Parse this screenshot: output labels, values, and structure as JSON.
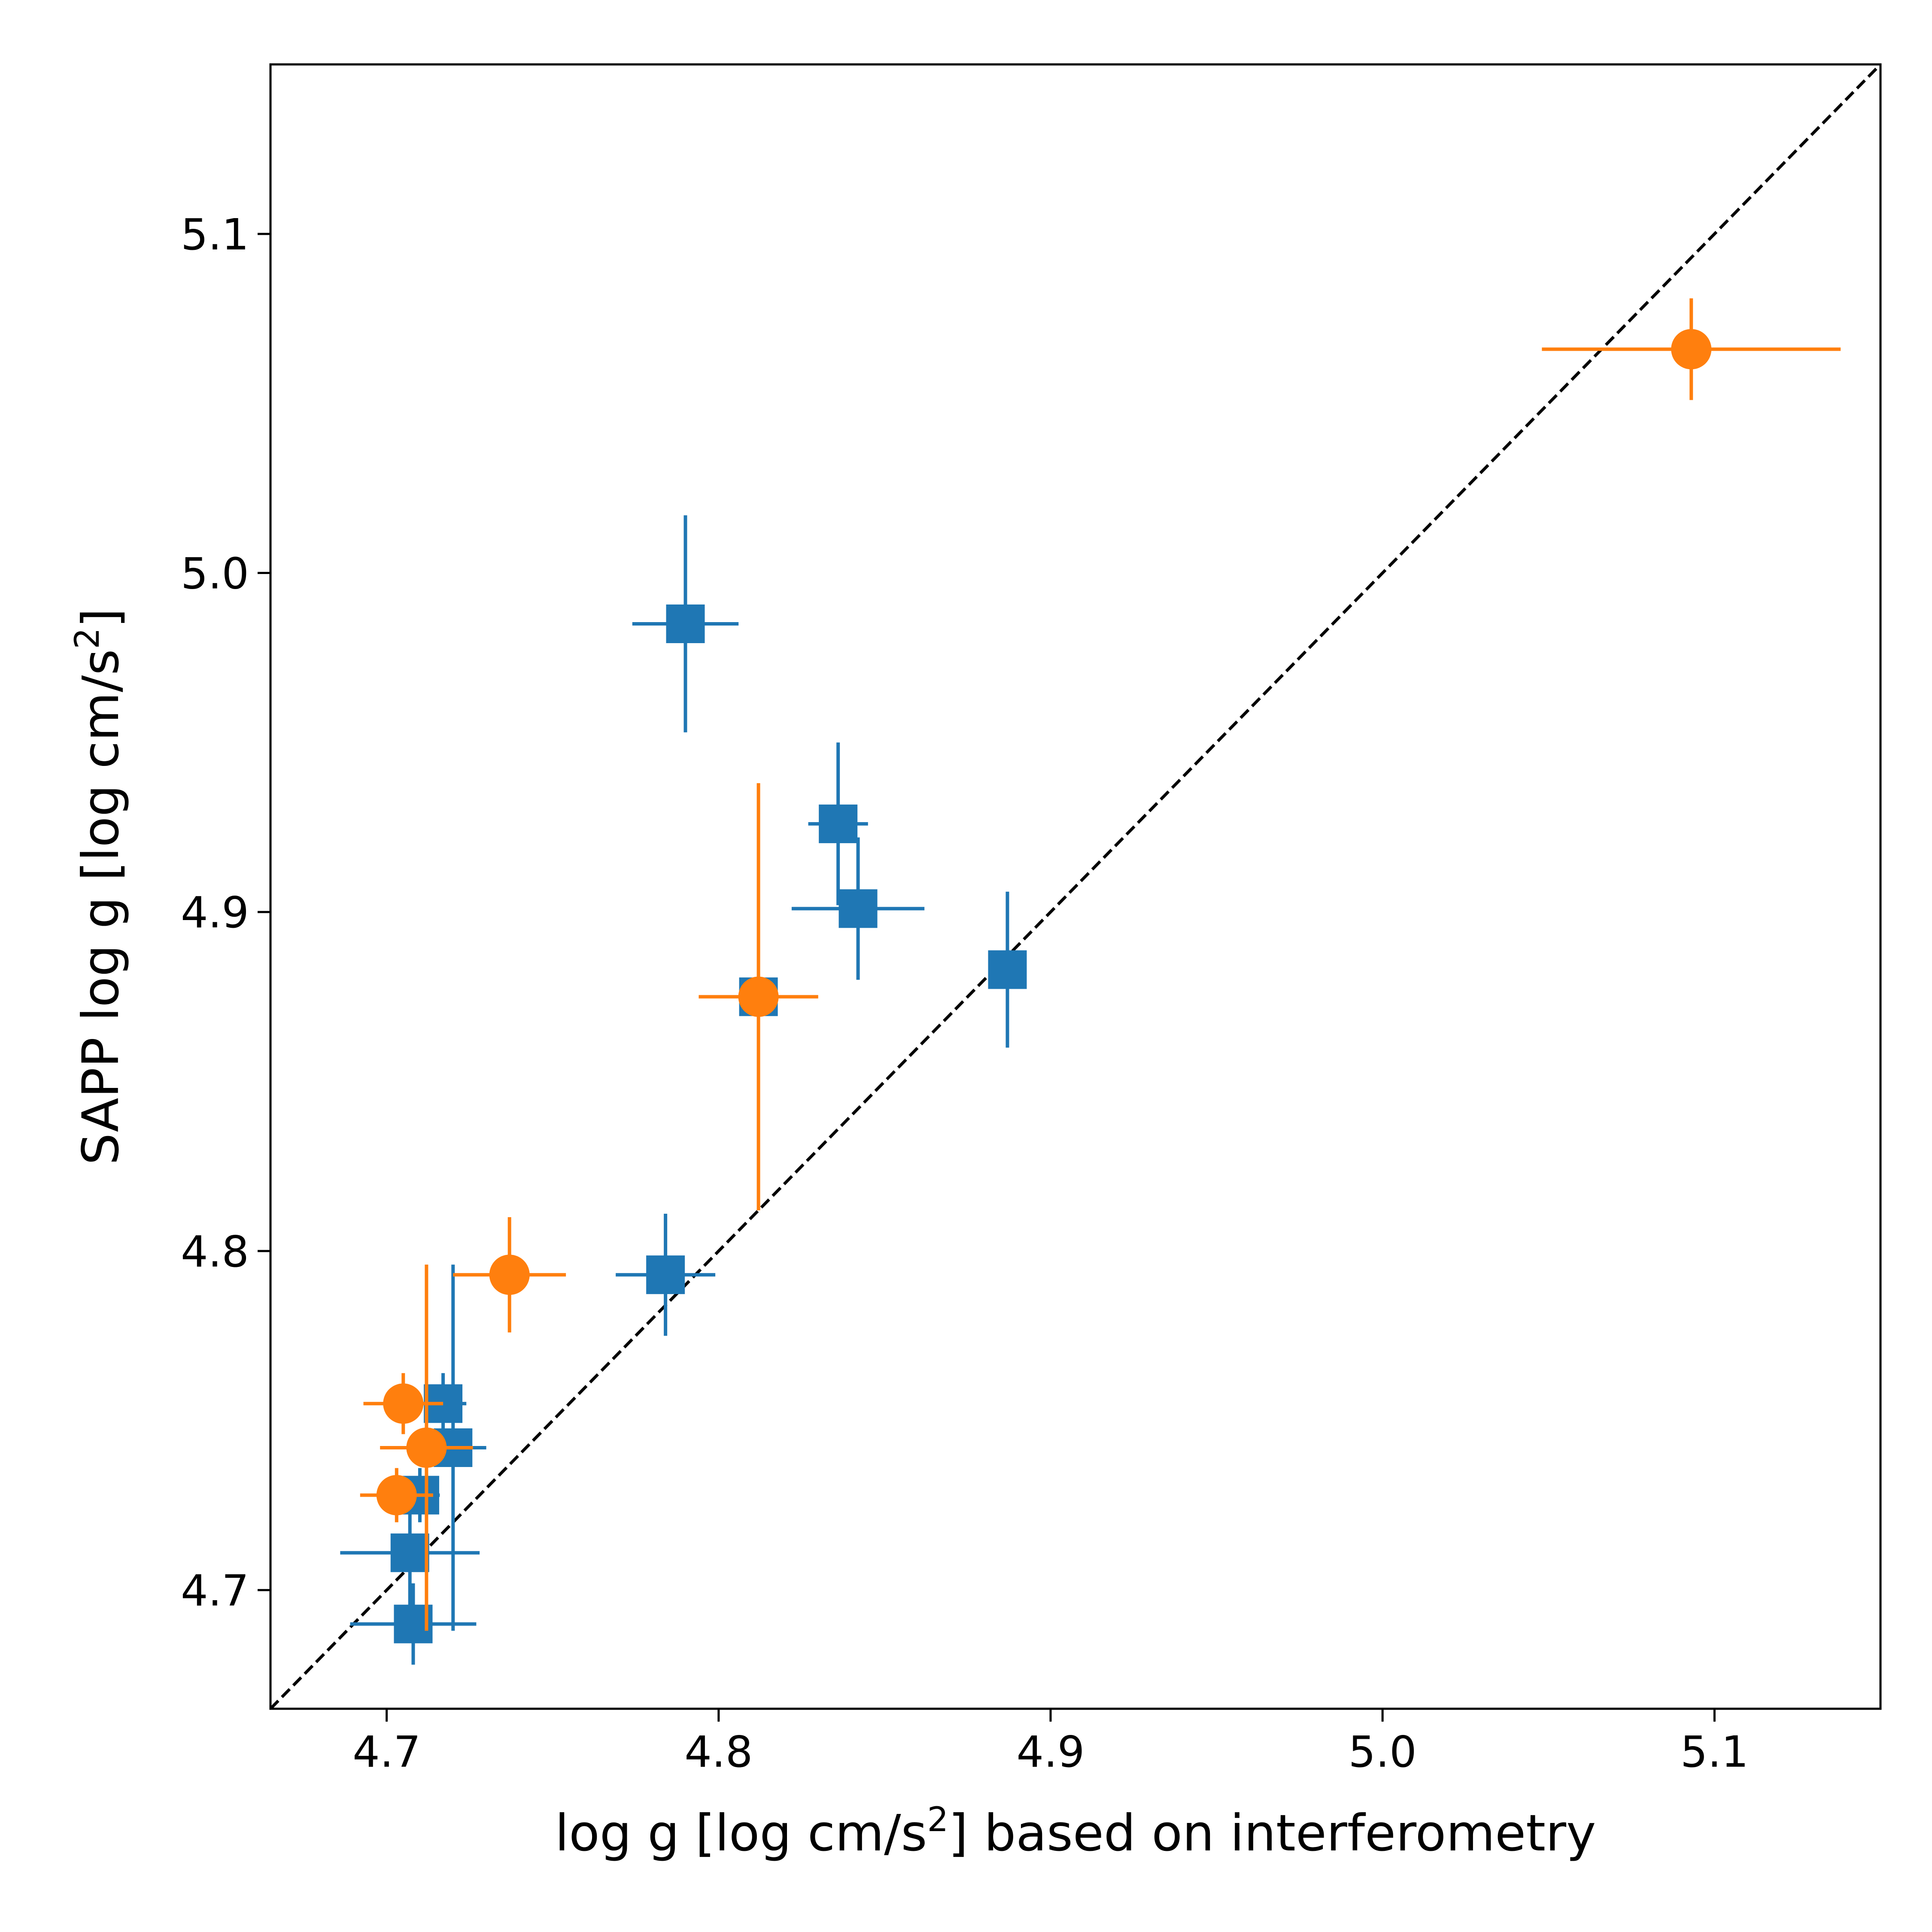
{
  "chart_data": {
    "type": "scatter",
    "xlabel": {
      "pre": "log g [log cm/s",
      "sup": "2",
      "post": "] based on interferometry"
    },
    "ylabel": {
      "pre": "SAPP log g [log cm/s",
      "sup": "2",
      "post": "]"
    },
    "xlim": [
      4.665,
      5.15
    ],
    "ylim": [
      4.665,
      5.15
    ],
    "xticks": [
      "4.7",
      "4.8",
      "4.9",
      "5.0",
      "5.1"
    ],
    "yticks": [
      "4.7",
      "4.8",
      "4.9",
      "5.0",
      "5.1"
    ],
    "reference_line": {
      "type": "y=x",
      "style": "dashed",
      "color": "#000000"
    },
    "grid": false,
    "legend": false,
    "series": [
      {
        "marker": "square",
        "color": "#1f77b4",
        "points": [
          {
            "x": 4.79,
            "y": 4.985,
            "xerr": 0.016,
            "yerr": 0.032
          },
          {
            "x": 4.836,
            "y": 4.926,
            "xerr": 0.009,
            "yerr": 0.024
          },
          {
            "x": 4.842,
            "y": 4.901,
            "xerr": 0.02,
            "yerr": 0.021
          },
          {
            "x": 4.887,
            "y": 4.883,
            "xerr": 0.0,
            "yerr": 0.023
          },
          {
            "x": 4.812,
            "y": 4.875,
            "xerr": 0.003,
            "yerr": 0.005
          },
          {
            "x": 4.784,
            "y": 4.793,
            "xerr": 0.015,
            "yerr": 0.018
          },
          {
            "x": 4.717,
            "y": 4.755,
            "xerr": 0.007,
            "yerr": 0.009
          },
          {
            "x": 4.72,
            "y": 4.742,
            "xerr": 0.01,
            "yerr": 0.054
          },
          {
            "x": 4.71,
            "y": 4.728,
            "xerr": 0.006,
            "yerr": 0.008
          },
          {
            "x": 4.707,
            "y": 4.711,
            "xerr": 0.021,
            "yerr": 0.018
          },
          {
            "x": 4.708,
            "y": 4.69,
            "xerr": 0.019,
            "yerr": 0.012
          }
        ]
      },
      {
        "marker": "circle",
        "color": "#ff7f0e",
        "points": [
          {
            "x": 5.093,
            "y": 5.066,
            "xerr": 0.045,
            "yerr": 0.015
          },
          {
            "x": 4.812,
            "y": 4.875,
            "xerr": 0.018,
            "yerr": 0.063
          },
          {
            "x": 4.737,
            "y": 4.793,
            "xerr": 0.017,
            "yerr": 0.017
          },
          {
            "x": 4.705,
            "y": 4.755,
            "xerr": 0.012,
            "yerr": 0.009
          },
          {
            "x": 4.712,
            "y": 4.742,
            "xerr": 0.014,
            "yerr": 0.054
          },
          {
            "x": 4.703,
            "y": 4.728,
            "xerr": 0.011,
            "yerr": 0.008
          }
        ]
      }
    ]
  }
}
